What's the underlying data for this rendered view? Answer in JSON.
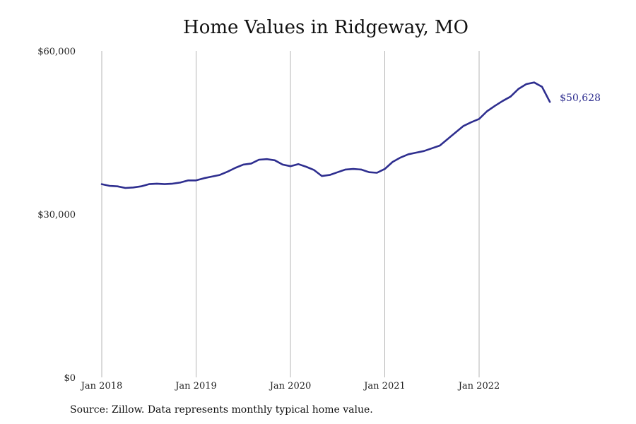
{
  "chart_data": {
    "type": "line",
    "title": "Home Values in Ridgeway, MO",
    "xlabel": "",
    "ylabel": "",
    "x_tick_labels": [
      "Jan 2018",
      "Jan 2019",
      "Jan 2020",
      "Jan 2021",
      "Jan 2022"
    ],
    "y_tick_labels": [
      "$60,000",
      "$30,000",
      "$0"
    ],
    "ylim": [
      0,
      60000
    ],
    "xlim": [
      "2018-01",
      "2022-10"
    ],
    "grid": "vertical",
    "line_color": "#2e2e8f",
    "end_label": "$50,628",
    "series": [
      {
        "x": [
          "2018-01",
          "2018-02",
          "2018-03",
          "2018-04",
          "2018-05",
          "2018-06",
          "2018-07",
          "2018-08",
          "2018-09",
          "2018-10",
          "2018-11",
          "2018-12",
          "2019-01",
          "2019-02",
          "2019-03",
          "2019-04",
          "2019-05",
          "2019-06",
          "2019-07",
          "2019-08",
          "2019-09",
          "2019-10",
          "2019-11",
          "2019-12",
          "2020-01",
          "2020-02",
          "2020-03",
          "2020-04",
          "2020-05",
          "2020-06",
          "2020-07",
          "2020-08",
          "2020-09",
          "2020-10",
          "2020-11",
          "2020-12",
          "2021-01",
          "2021-02",
          "2021-03",
          "2021-04",
          "2021-05",
          "2021-06",
          "2021-07",
          "2021-08",
          "2021-09",
          "2021-10",
          "2021-11",
          "2021-12",
          "2022-01",
          "2022-02",
          "2022-03",
          "2022-04",
          "2022-05",
          "2022-06",
          "2022-07",
          "2022-08",
          "2022-09",
          "2022-10"
        ],
        "values": [
          35500,
          35200,
          35100,
          34800,
          34900,
          35100,
          35500,
          35600,
          35500,
          35600,
          35800,
          36200,
          36200,
          36600,
          36900,
          37200,
          37800,
          38500,
          39100,
          39300,
          40000,
          40100,
          39900,
          39100,
          38800,
          39200,
          38700,
          38100,
          37000,
          37200,
          37700,
          38200,
          38300,
          38200,
          37700,
          37600,
          38300,
          39600,
          40400,
          41000,
          41300,
          41600,
          42100,
          42600,
          43800,
          45000,
          46200,
          46900,
          47500,
          48900,
          49900,
          50800,
          51600,
          53000,
          53900,
          54200,
          53400,
          50628
        ]
      }
    ]
  },
  "source_text": "Source: Zillow. Data represents monthly typical home value."
}
